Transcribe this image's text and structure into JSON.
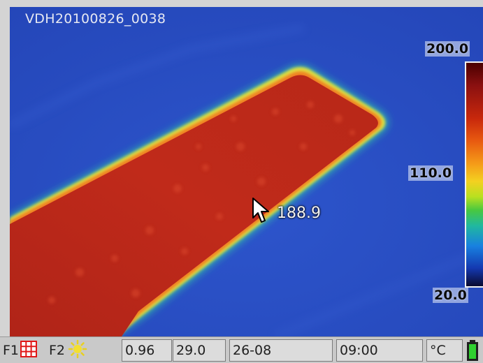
{
  "image": {
    "filename": "VDH20100826_0038",
    "cursor_reading": "188.9"
  },
  "scale": {
    "max": "200.0",
    "mid": "110.0",
    "min": "20.0"
  },
  "status_bar": {
    "f1_label": "F1",
    "f2_label": "F2",
    "emissivity": "0.96",
    "ambient_temp": "29.0",
    "date": "26-08",
    "time": "09:00",
    "unit": "°C"
  },
  "icons": {
    "f1": "grid-icon",
    "f2": "sun-icon",
    "battery": "battery-icon",
    "cursor": "cursor-arrow-icon"
  },
  "colors": {
    "background_cold": "#2a4ec4",
    "object_hot": "#b8281c",
    "edge": "#f0e040"
  }
}
